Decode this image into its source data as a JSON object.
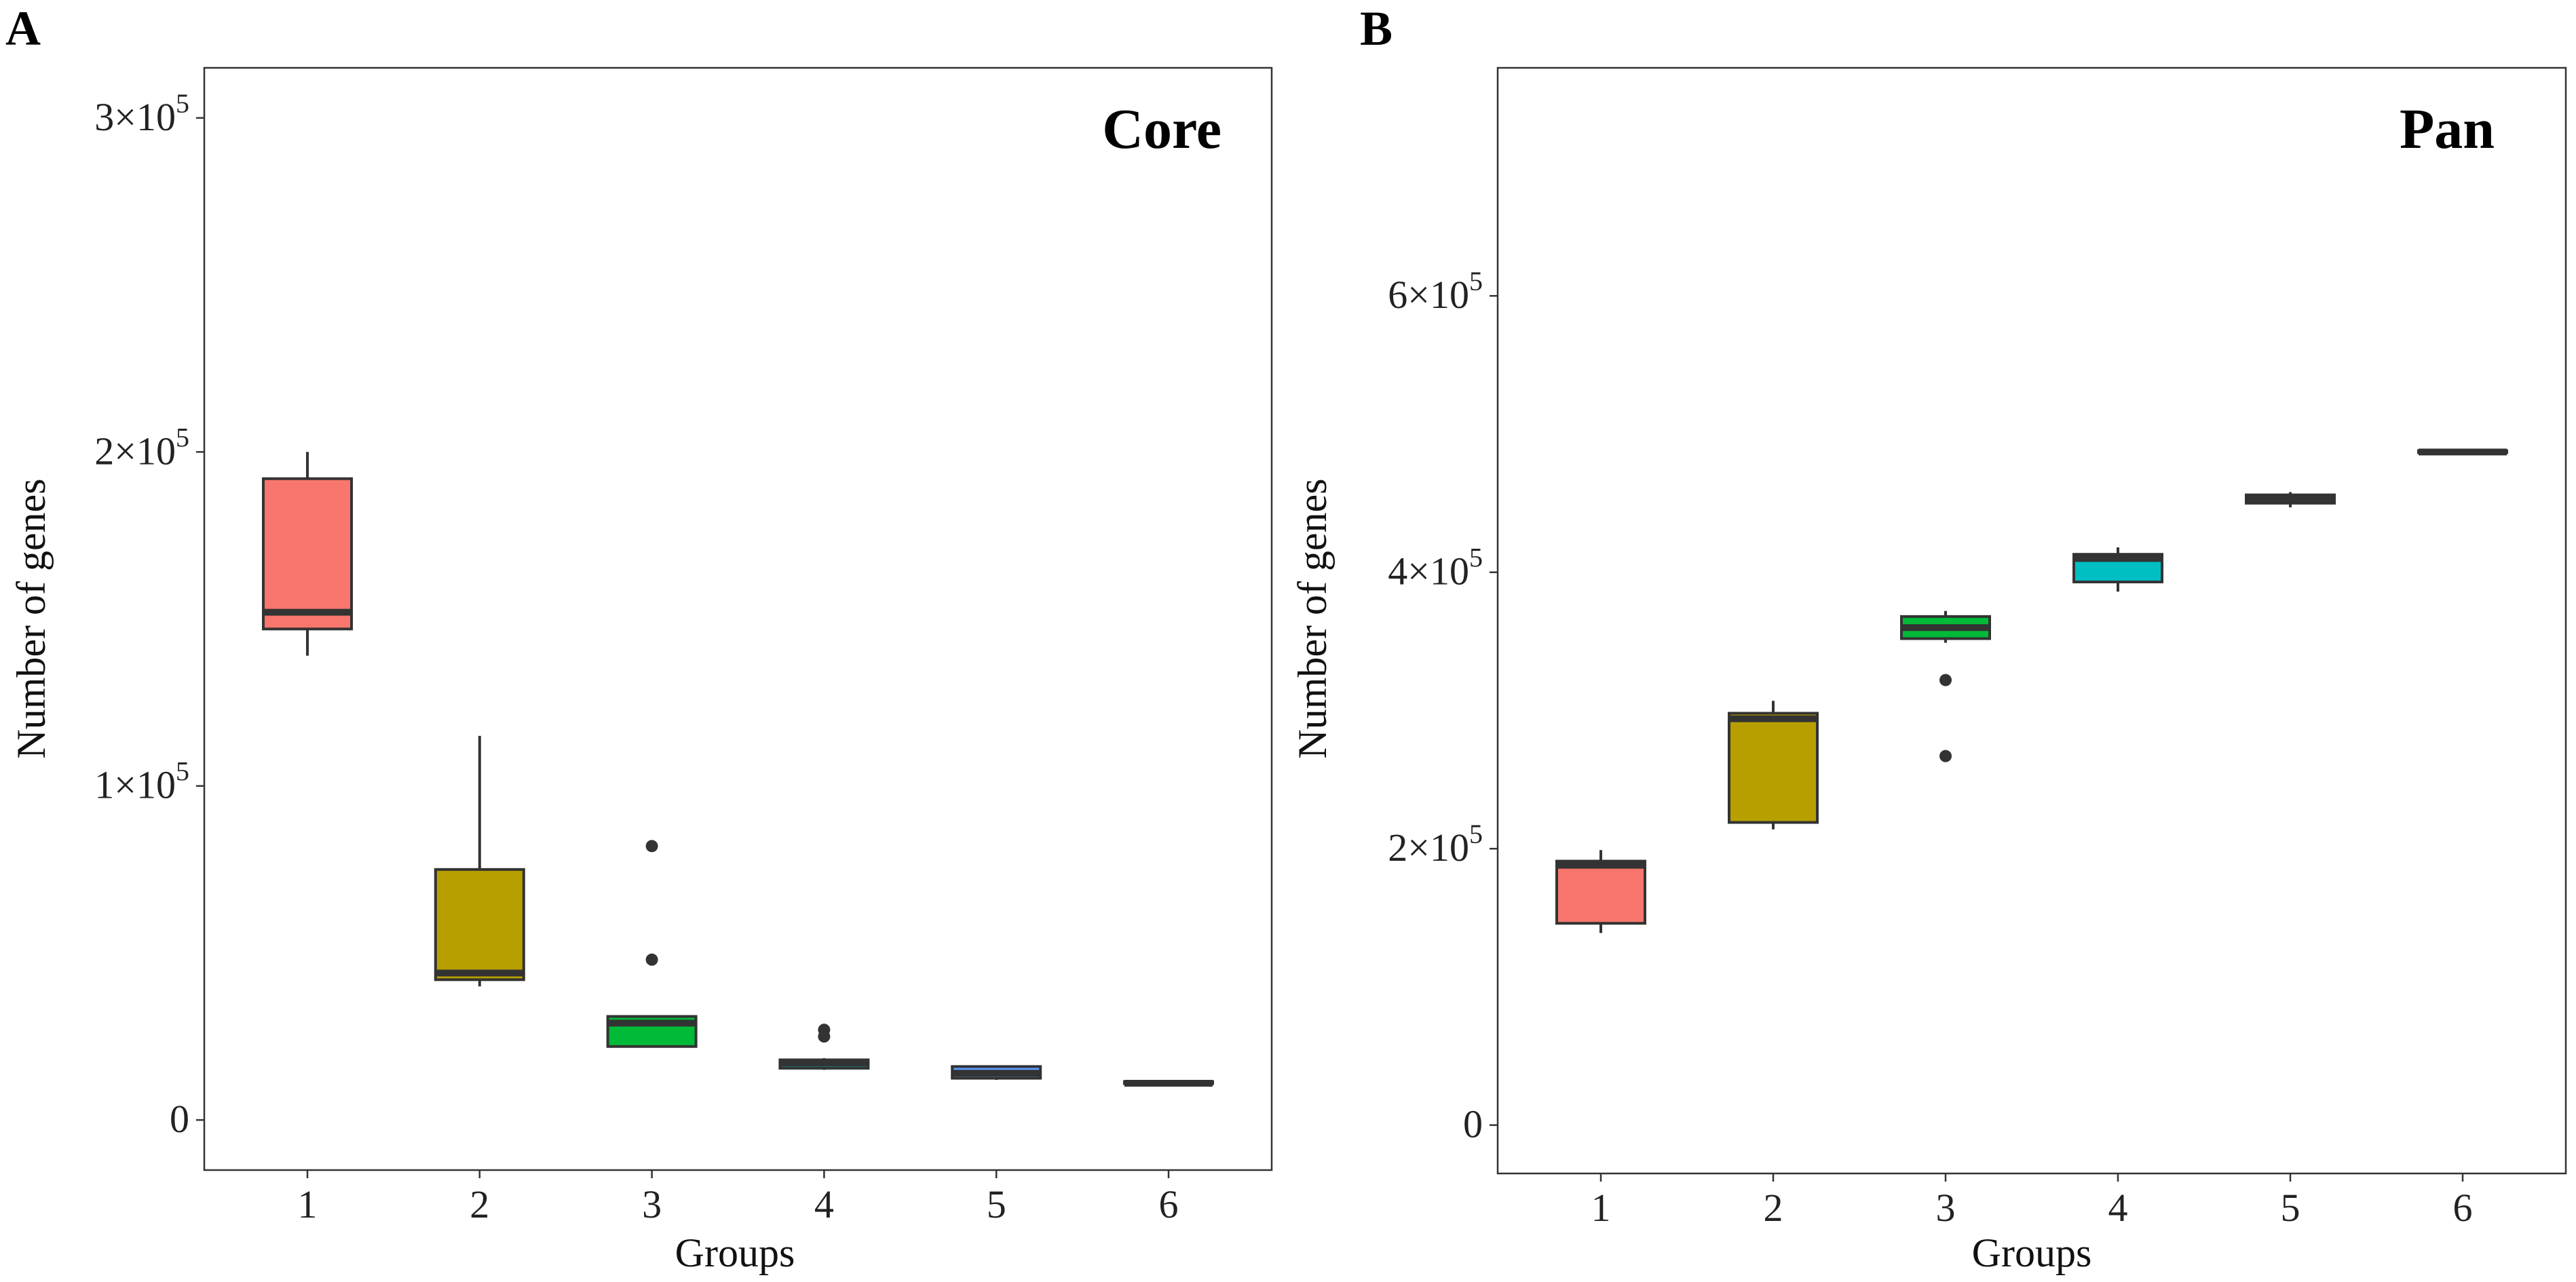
{
  "chart_data": [
    {
      "panel": "A",
      "type": "boxplot",
      "title": "Core",
      "xlabel": "Groups",
      "ylabel": "Number of genes",
      "categories": [
        "1",
        "2",
        "3",
        "4",
        "5",
        "6"
      ],
      "ylim": [
        -15000,
        315000
      ],
      "yticks": [
        {
          "value": 0,
          "mant": "0",
          "exp": ""
        },
        {
          "value": 100000,
          "mant": "1×10",
          "exp": "5"
        },
        {
          "value": 200000,
          "mant": "2×10",
          "exp": "5"
        },
        {
          "value": 300000,
          "mant": "3×10",
          "exp": "5"
        }
      ],
      "boxes": [
        {
          "group": "1",
          "min": 139000,
          "q1": 147000,
          "median": 152000,
          "q3": 192000,
          "max": 200000,
          "outliers": [],
          "color": "#F8766D"
        },
        {
          "group": "2",
          "min": 40000,
          "q1": 42000,
          "median": 44000,
          "q3": 75000,
          "max": 115000,
          "outliers": [],
          "color": "#B79F00"
        },
        {
          "group": "3",
          "min": 22000,
          "q1": 22000,
          "median": 29000,
          "q3": 31000,
          "max": 31000,
          "outliers": [
            82000,
            48000
          ],
          "color": "#00BA38"
        },
        {
          "group": "4",
          "min": 15000,
          "q1": 15500,
          "median": 17000,
          "q3": 18000,
          "max": 18500,
          "outliers": [
            27000,
            25000
          ],
          "color": "#00BFC4"
        },
        {
          "group": "5",
          "min": 12000,
          "q1": 12500,
          "median": 14000,
          "q3": 16000,
          "max": 16000,
          "outliers": [],
          "color": "#619CFF"
        },
        {
          "group": "6",
          "min": 11000,
          "q1": 11000,
          "median": 11000,
          "q3": 11500,
          "max": 11500,
          "outliers": [],
          "color": "#F564E3"
        }
      ]
    },
    {
      "panel": "B",
      "type": "boxplot",
      "title": "Pan",
      "xlabel": "Groups",
      "ylabel": "Number of genes",
      "categories": [
        "1",
        "2",
        "3",
        "4",
        "5",
        "6"
      ],
      "ylim": [
        -35000,
        765000
      ],
      "yticks": [
        {
          "value": 0,
          "mant": "0",
          "exp": ""
        },
        {
          "value": 200000,
          "mant": "2×10",
          "exp": "5"
        },
        {
          "value": 400000,
          "mant": "4×10",
          "exp": "5"
        },
        {
          "value": 600000,
          "mant": "6×10",
          "exp": "5"
        }
      ],
      "boxes": [
        {
          "group": "1",
          "min": 139000,
          "q1": 146000,
          "median": 188000,
          "q3": 191000,
          "max": 199000,
          "outliers": [],
          "color": "#F8766D"
        },
        {
          "group": "2",
          "min": 214000,
          "q1": 219000,
          "median": 294000,
          "q3": 298000,
          "max": 307000,
          "outliers": [],
          "color": "#B79F00"
        },
        {
          "group": "3",
          "min": 349000,
          "q1": 352000,
          "median": 360000,
          "q3": 368000,
          "max": 372000,
          "outliers": [
            322000,
            267000
          ],
          "color": "#00BA38"
        },
        {
          "group": "4",
          "min": 386000,
          "q1": 393000,
          "median": 410000,
          "q3": 413000,
          "max": 418000,
          "outliers": [],
          "color": "#00BFC4"
        },
        {
          "group": "5",
          "min": 447000,
          "q1": 450000,
          "median": 453000,
          "q3": 456000,
          "max": 458000,
          "outliers": [],
          "color": "#619CFF"
        },
        {
          "group": "6",
          "min": 487000,
          "q1": 487000,
          "median": 487000,
          "q3": 488000,
          "max": 488000,
          "outliers": [],
          "color": "#F564E3"
        }
      ]
    }
  ]
}
